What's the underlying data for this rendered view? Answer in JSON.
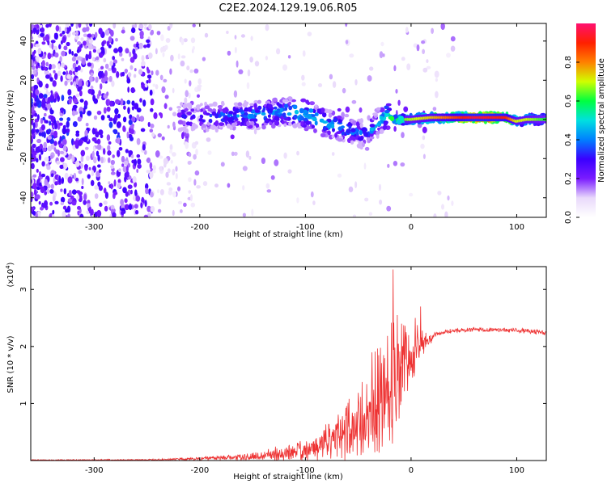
{
  "title": "C2E2.2024.129.19.06.R05",
  "chart_data": [
    {
      "type": "heatmap",
      "title": "C2E2.2024.129.19.06.R05",
      "xlabel": "Height of straight line (km)",
      "ylabel": "Frequency (Hz)",
      "xlim": [
        -360,
        128
      ],
      "ylim": [
        -50,
        49
      ],
      "xticks": [
        -300,
        -200,
        -100,
        0,
        100
      ],
      "yticks": [
        -40,
        -20,
        0,
        20,
        40
      ],
      "colorbar": {
        "label": "Normalized spectral amplitude",
        "range": [
          0.0,
          1.0
        ],
        "ticks": [
          0.0,
          0.2,
          0.4,
          0.6,
          0.8
        ],
        "tick_labels": [
          "0.0",
          "0.2",
          "0.4",
          "0.6",
          "0.8"
        ],
        "colors": [
          "#ffffff",
          "#e9d9fb",
          "#7a1cff",
          "#3a00ff",
          "#0080ff",
          "#00e0e0",
          "#00ff40",
          "#d0ff00",
          "#ff8000",
          "#ff2000",
          "#ff1070"
        ]
      },
      "ridge": {
        "x": [
          -360,
          -300,
          -250,
          -200,
          -150,
          -120,
          -100,
          -80,
          -60,
          -45,
          -35,
          -25,
          -15,
          0,
          20,
          60,
          90,
          100,
          110,
          128
        ],
        "freq": [
          2,
          2,
          1,
          1,
          2,
          4,
          3,
          -2,
          -5,
          -8,
          -4,
          2,
          0,
          0,
          1,
          1,
          1,
          -1,
          0,
          0
        ],
        "amplitude": [
          0.25,
          0.28,
          0.32,
          0.35,
          0.42,
          0.45,
          0.5,
          0.45,
          0.4,
          0.38,
          0.4,
          0.5,
          0.62,
          0.68,
          0.75,
          0.95,
          0.9,
          0.7,
          0.7,
          0.6
        ]
      }
    },
    {
      "type": "line",
      "xlabel": "Height of straight line (km)",
      "ylabel": "SNR (10 * v/v)",
      "y_scale_label": "(x10",
      "y_scale_exponent": "4",
      "xlim": [
        -360,
        128
      ],
      "ylim": [
        0,
        3.4
      ],
      "xticks": [
        -300,
        -200,
        -100,
        0,
        100
      ],
      "yticks": [
        1,
        2,
        3
      ],
      "line_color": "#ee3333",
      "envelope": {
        "x": [
          -360,
          -250,
          -200,
          -150,
          -120,
          -100,
          -80,
          -60,
          -45,
          -35,
          -25,
          -15,
          -5,
          5,
          15,
          25,
          35,
          60,
          100,
          128
        ],
        "mean": [
          0.01,
          0.01,
          0.03,
          0.07,
          0.12,
          0.18,
          0.3,
          0.5,
          0.72,
          0.95,
          1.2,
          1.5,
          1.75,
          1.95,
          2.1,
          2.22,
          2.27,
          2.3,
          2.28,
          2.24
        ],
        "noise": [
          0.005,
          0.01,
          0.02,
          0.05,
          0.1,
          0.15,
          0.25,
          0.4,
          0.55,
          0.7,
          0.8,
          0.75,
          0.6,
          0.3,
          0.1,
          0.04,
          0.03,
          0.03,
          0.03,
          0.03
        ]
      },
      "peaks": [
        {
          "x": -17,
          "y": 3.35
        },
        {
          "x": 9,
          "y": 2.7
        },
        {
          "x": 4,
          "y": 2.5
        },
        {
          "x": -13,
          "y": 2.55
        },
        {
          "x": -9,
          "y": 2.4
        }
      ]
    }
  ]
}
